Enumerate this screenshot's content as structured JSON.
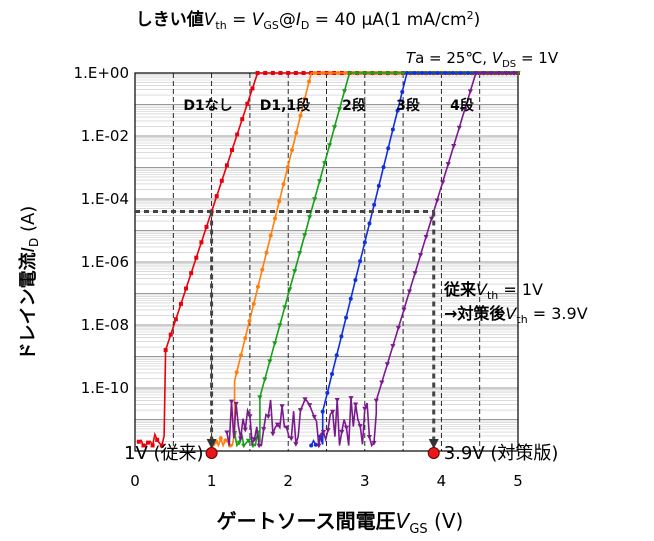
{
  "chart_data": {
    "type": "line",
    "title": {
      "prefix": "しきい値",
      "v": "V",
      "vsub": "th",
      "eq1": " = ",
      "vgs": "V",
      "vgssub": "GS",
      "at": "@",
      "id": "I",
      "idsub": "D",
      "rest": " = 40 µA(1 mA/cm",
      "sup": "2",
      "close": ")"
    },
    "condition": {
      "ta_i": "T",
      "ta": "a = 25℃, ",
      "vds": "V",
      "vdssub": "DS",
      "vds_val": " = 1V"
    },
    "xlabel": {
      "main": "ゲートソース間電圧",
      "v": "V",
      "sub": "GS",
      "unit": " (V)"
    },
    "ylabel": {
      "main": "ドレイン電流",
      "i": "I",
      "sub": "D",
      "unit": " (A)"
    },
    "xlim": [
      0,
      5
    ],
    "x_ticks": [
      "0",
      "1",
      "2",
      "3",
      "4",
      "5"
    ],
    "y_log": true,
    "ylim": [
      1e-12,
      1
    ],
    "y_ticks": [
      {
        "value": 1,
        "label": "1.E+00"
      },
      {
        "value": 0.01,
        "label": "1.E-02"
      },
      {
        "value": 0.0001,
        "label": "1.E-04"
      },
      {
        "value": 1e-06,
        "label": "1.E-06"
      },
      {
        "value": 1e-08,
        "label": "1.E-08"
      },
      {
        "value": 1e-10,
        "label": "1.E-10"
      }
    ],
    "grid": true,
    "threshold_current": 4e-05,
    "series": [
      {
        "name": "D1なし",
        "color": "#e8000b",
        "marker": "square",
        "noise_x": [
          0.05,
          0.4
        ],
        "rise_start": 0.4,
        "rise_end": 1.6,
        "vth": 1.0
      },
      {
        "name": "D1,1段",
        "color": "#ff7f0e",
        "marker": "circle",
        "noise_x": [
          1.0,
          1.3
        ],
        "rise_start": 1.3,
        "rise_end": 2.3,
        "vth": 1.85
      },
      {
        "name": "2段",
        "color": "#1a9e1a",
        "marker": "triangle",
        "noise_x": [
          1.3,
          1.63
        ],
        "rise_start": 1.63,
        "rise_end": 2.8,
        "vth": 2.3
      },
      {
        "name": "3段",
        "color": "#1030e0",
        "marker": "circle",
        "noise_x": [
          2.3,
          2.45
        ],
        "rise_start": 2.45,
        "rise_end": 3.55,
        "vth": 3.1
      },
      {
        "name": "4段",
        "color": "#7a1a8c",
        "marker": "triangle",
        "noise_x": [
          1.2,
          3.15
        ],
        "rise_start": 3.15,
        "rise_end": 4.45,
        "vth": 3.9
      }
    ],
    "vth_markers": [
      {
        "x": 1.0,
        "label": "1V (従来)",
        "color": "#e81818"
      },
      {
        "x": 3.9,
        "label": "3.9V (対策版)",
        "color": "#e81818"
      }
    ],
    "annotation": {
      "line1": {
        "main": "従来",
        "v": "V",
        "sub": "th",
        "rest": " = 1V"
      },
      "line2": {
        "main": "→対策後",
        "v": "V",
        "sub": "th",
        "rest": " = 3.9V"
      }
    }
  }
}
